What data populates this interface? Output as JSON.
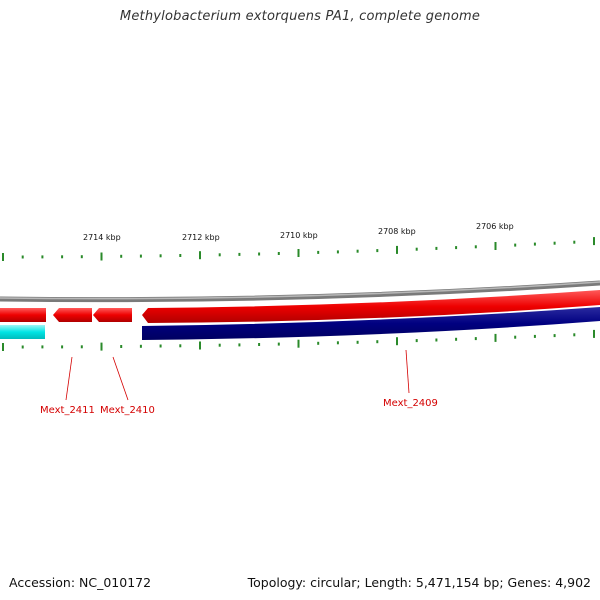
{
  "title": "Methylobacterium extorquens PA1, complete genome",
  "footer": {
    "accession": "Accession: NC_010172",
    "summary": "Topology: circular; Length: 5,471,154 bp; Genes: 4,902"
  },
  "scale_labels": [
    "2714 kbp",
    "2712 kbp",
    "2710 kbp",
    "2708 kbp",
    "2706 kbp"
  ],
  "gene_labels": [
    "Mext_2411",
    "Mext_2410",
    "Mext_2409"
  ],
  "colors": {
    "backbone": "#7a7a7a",
    "forward_strand": "#ee0000",
    "reverse_strand": "#000080",
    "reverse_strand_alt": "#00e5e5",
    "tick": "#2a8a2a",
    "label": "#d40000"
  }
}
